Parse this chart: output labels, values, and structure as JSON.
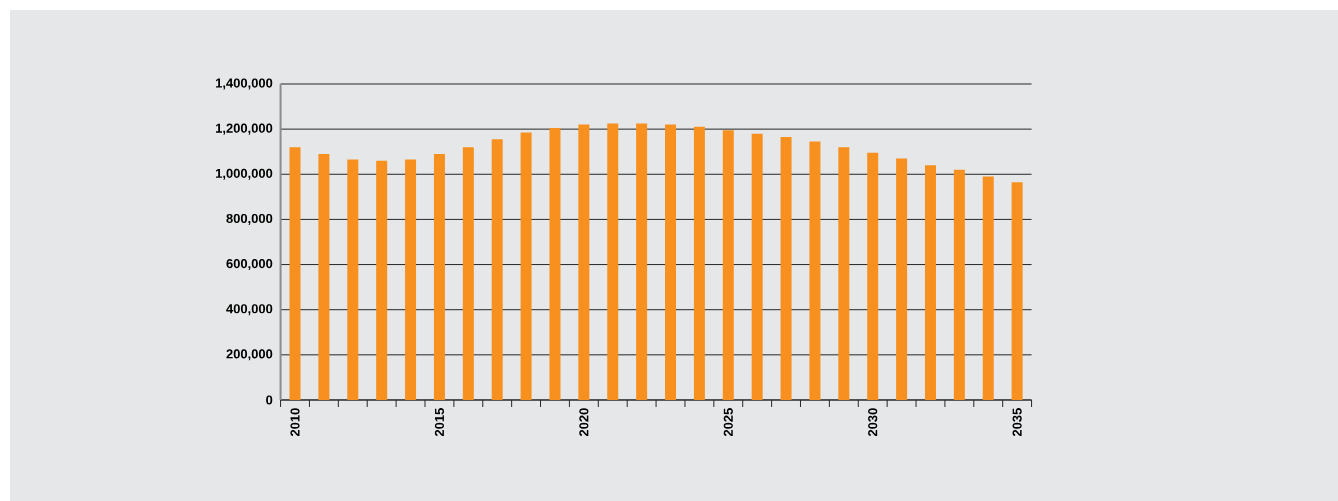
{
  "chart_data": {
    "type": "bar",
    "categories": [
      "2010",
      null,
      null,
      null,
      null,
      "2015",
      null,
      null,
      null,
      null,
      "2020",
      null,
      null,
      null,
      null,
      "2025",
      null,
      null,
      null,
      null,
      "2030",
      null,
      null,
      null,
      null,
      "2035"
    ],
    "values": [
      1120000,
      1090000,
      1065000,
      1060000,
      1065000,
      1090000,
      1120000,
      1155000,
      1185000,
      1205000,
      1220000,
      1225000,
      1225000,
      1220000,
      1210000,
      1195000,
      1180000,
      1165000,
      1145000,
      1120000,
      1095000,
      1070000,
      1040000,
      1020000,
      990000,
      965000
    ],
    "color": "#f7901e",
    "ylim": [
      0,
      1400000
    ],
    "yticks": [
      0,
      {
        "value": 200000,
        "label": "200,000"
      },
      {
        "value": 400000,
        "label": "400,000"
      },
      {
        "value": 600000,
        "label": "600,000"
      },
      {
        "value": 800000,
        "label": "800,000"
      },
      {
        "value": 1000000,
        "label": "1,000,000"
      },
      {
        "value": 1200000,
        "label": "1,200,000"
      },
      {
        "value": 1400000,
        "label": "1,400,000"
      }
    ],
    "grid": "y"
  }
}
